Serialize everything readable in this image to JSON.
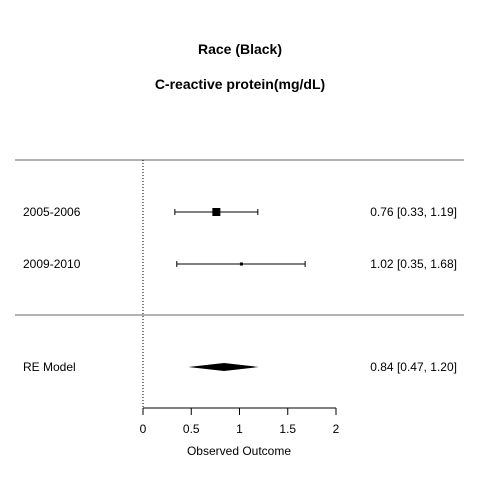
{
  "chart_data": {
    "type": "forest",
    "title": "Race (Black)",
    "subtitle": "C-reactive protein(mg/dL)",
    "xlabel": "Observed Outcome",
    "xlim": [
      0,
      2
    ],
    "x_ticks": [
      0,
      0.5,
      1,
      1.5,
      2
    ],
    "x_tick_labels": [
      "0",
      "0.5",
      "1",
      "1.5",
      "2"
    ],
    "reference_line_x": 0,
    "studies": [
      {
        "label": "2005-2006",
        "estimate": 0.76,
        "ci_low": 0.33,
        "ci_high": 1.19,
        "ci_text": "0.76 [0.33, 1.19]",
        "marker": "large"
      },
      {
        "label": "2009-2010",
        "estimate": 1.02,
        "ci_low": 0.35,
        "ci_high": 1.68,
        "ci_text": "1.02 [0.35, 1.68]",
        "marker": "small"
      }
    ],
    "summary": {
      "label": "RE Model",
      "estimate": 0.84,
      "ci_low": 0.47,
      "ci_high": 1.2,
      "ci_text": "0.84 [0.47, 1.20]"
    }
  }
}
